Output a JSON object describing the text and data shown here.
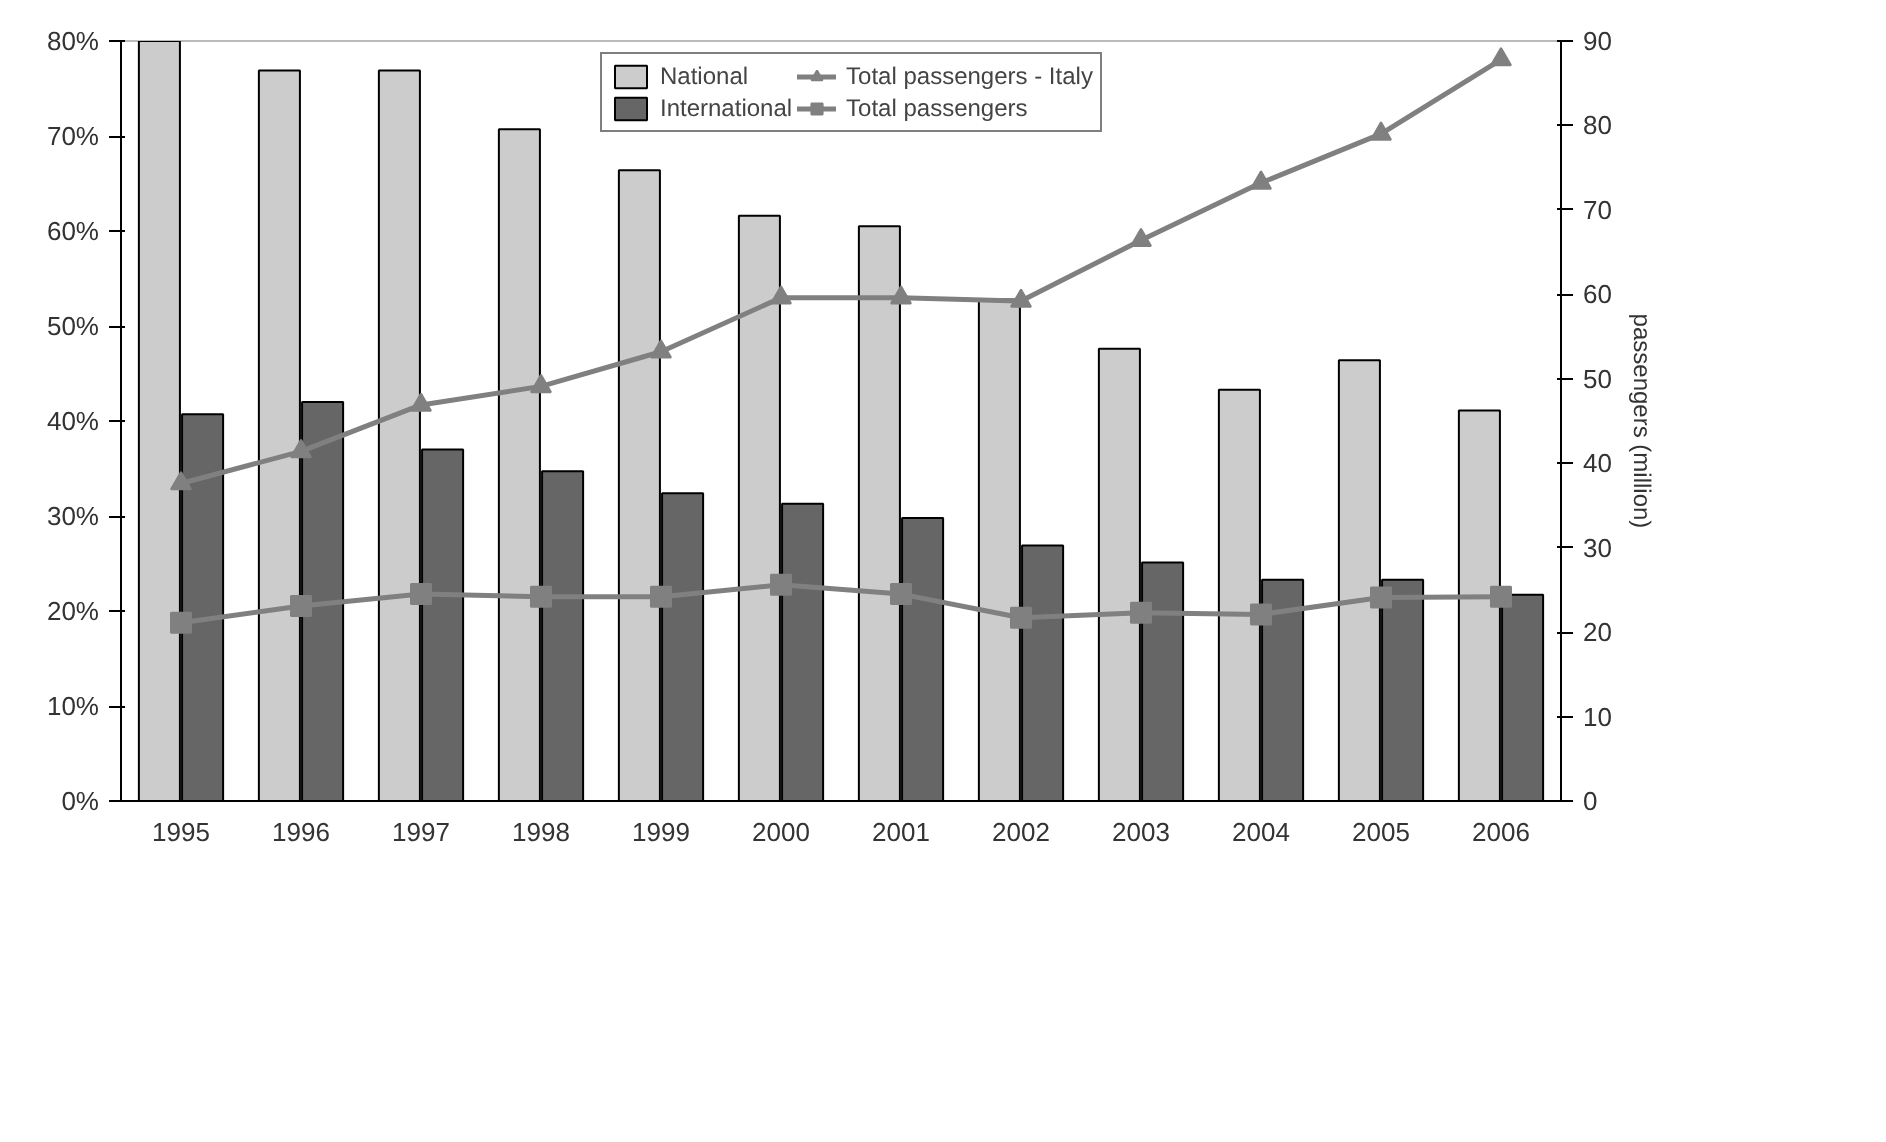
{
  "chart_data": {
    "type": "bar",
    "categories": [
      "1995",
      "1996",
      "1997",
      "1998",
      "1999",
      "2000",
      "2001",
      "2002",
      "2003",
      "2004",
      "2005",
      "2006"
    ],
    "y2label": "passengers (million)",
    "ylim": [
      0,
      80
    ],
    "yticks": [
      {
        "value": 0,
        "label": "0%"
      },
      {
        "value": 10,
        "label": "10%"
      },
      {
        "value": 20,
        "label": "20%"
      },
      {
        "value": 30,
        "label": "30%"
      },
      {
        "value": 40,
        "label": "40%"
      },
      {
        "value": 50,
        "label": "50%"
      },
      {
        "value": 60,
        "label": "60%"
      },
      {
        "value": 70,
        "label": "70%"
      },
      {
        "value": 80,
        "label": "80%"
      }
    ],
    "y2lim": [
      0,
      90
    ],
    "y2ticks": [
      0,
      10,
      20,
      30,
      40,
      50,
      60,
      70,
      80,
      90
    ],
    "grid": false,
    "legend": "top",
    "series": [
      {
        "name": "National",
        "color": "#cccccc",
        "values": [
          80,
          76.9,
          76.9,
          70.7,
          66.4,
          61.6,
          60.5,
          52.8,
          47.6,
          43.3,
          46.4,
          41.1
        ]
      },
      {
        "name": "International",
        "color": "#666666",
        "values": [
          40.7,
          42,
          37,
          34.7,
          32.4,
          31.3,
          29.8,
          26.9,
          25.1,
          23.3,
          23.3,
          21.7
        ]
      },
      {
        "name": "Total passengers - Italy",
        "type": "line",
        "axis": "y2",
        "marker": "triangle",
        "color": "#808080",
        "values": [
          37.6,
          41.4,
          46.9,
          49.1,
          53.2,
          59.6,
          59.6,
          59.2,
          66.4,
          73.2,
          79,
          87.8
        ]
      },
      {
        "name": "Total passengers",
        "type": "line",
        "axis": "y2",
        "marker": "square",
        "color": "#808080",
        "values": [
          21.1,
          23.1,
          24.5,
          24.2,
          24.2,
          25.6,
          24.5,
          21.7,
          22.3,
          22.1,
          24.1,
          24.2
        ]
      }
    ]
  }
}
